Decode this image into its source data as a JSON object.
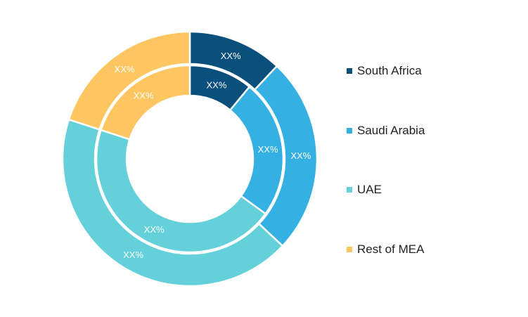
{
  "chart_data": {
    "type": "pie",
    "rings": [
      {
        "ring": "outer",
        "categories": [
          "South Africa",
          "Saudi Arabia",
          "UAE",
          "Rest of MEA"
        ],
        "values": [
          12,
          25,
          43,
          20
        ],
        "labels": [
          "XX%",
          "XX%",
          "XX%",
          "XX%"
        ]
      },
      {
        "ring": "inner",
        "categories": [
          "South Africa",
          "Saudi Arabia",
          "UAE",
          "Rest of MEA"
        ],
        "values": [
          11,
          24,
          45,
          20
        ],
        "labels": [
          "XX%",
          "XX%",
          "XX%",
          "XX%"
        ]
      }
    ],
    "legend": {
      "position": "right",
      "entries": [
        {
          "name": "South Africa",
          "color": "#0b4f7c"
        },
        {
          "name": "Saudi Arabia",
          "color": "#35b0e3"
        },
        {
          "name": "UAE",
          "color": "#63d0da"
        },
        {
          "name": "Rest of MEA",
          "color": "#fdc661"
        }
      ]
    },
    "colors": [
      "#0b4f7c",
      "#35b0e3",
      "#63d0da",
      "#fdc661"
    ]
  }
}
